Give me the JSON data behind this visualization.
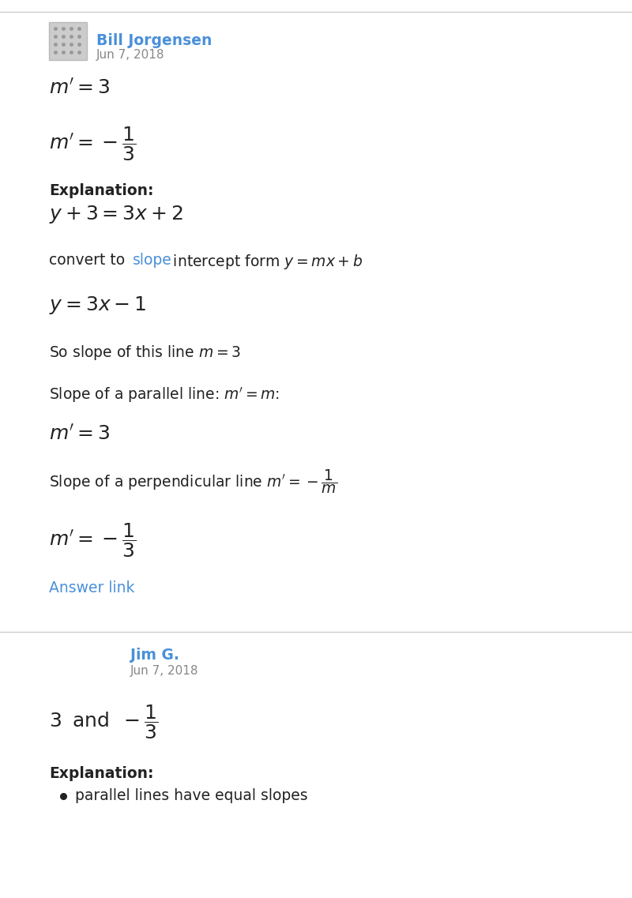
{
  "bg_color": "#ffffff",
  "separator_color": "#cccccc",
  "blue_color": "#4a90d9",
  "dark_text": "#222222",
  "gray_text": "#888888",
  "author1_name": "Bill Jorgensen",
  "author1_date": "Jun 7, 2018",
  "author2_name": "Jim G.",
  "author2_date": "Jun 7, 2018"
}
